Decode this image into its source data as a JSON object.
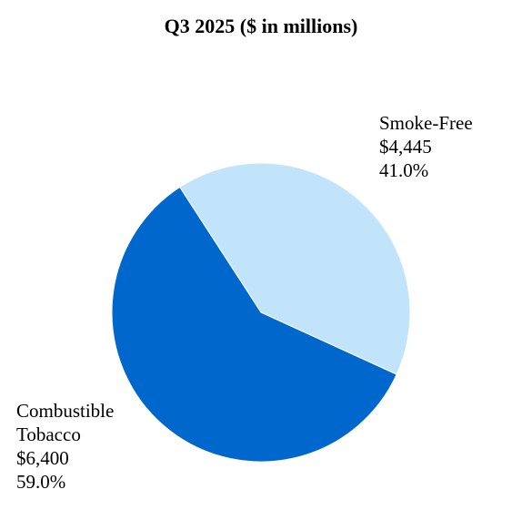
{
  "chart_data": {
    "type": "pie",
    "title": "Q3 2025 ($ in millions)",
    "slices": [
      {
        "name_lines": [
          "Smoke-Free"
        ],
        "value": 4445,
        "value_label": "$4,445",
        "percent": 41.0,
        "percent_label": "41.0%",
        "color": "#c2e4fb"
      },
      {
        "name_lines": [
          "Combustible",
          "Tobacco"
        ],
        "value": 6400,
        "value_label": "$6,400",
        "percent": 59.0,
        "percent_label": "59.0%",
        "color": "#0068cc"
      }
    ]
  }
}
